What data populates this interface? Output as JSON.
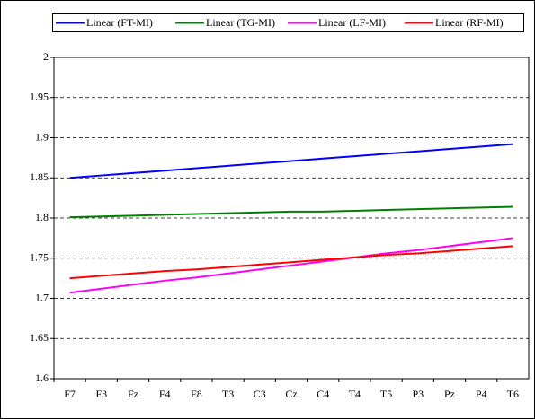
{
  "chart_data": {
    "type": "line",
    "categories": [
      "F7",
      "F3",
      "Fz",
      "F4",
      "F8",
      "T3",
      "C3",
      "Cz",
      "C4",
      "T4",
      "T5",
      "P3",
      "Pz",
      "P4",
      "T6"
    ],
    "series": [
      {
        "name": "Linear (FT-MI)",
        "color": "#0000ff",
        "values": [
          1.85,
          1.853,
          1.856,
          1.859,
          1.862,
          1.865,
          1.868,
          1.871,
          1.874,
          1.877,
          1.88,
          1.883,
          1.886,
          1.889,
          1.892
        ]
      },
      {
        "name": "Linear (TG-MI)",
        "color": "#008000",
        "values": [
          1.801,
          1.802,
          1.803,
          1.804,
          1.805,
          1.806,
          1.807,
          1.808,
          1.808,
          1.809,
          1.81,
          1.811,
          1.812,
          1.813,
          1.814
        ]
      },
      {
        "name": "Linear (LF-MI)",
        "color": "#ff00ff",
        "values": [
          1.707,
          1.712,
          1.717,
          1.722,
          1.726,
          1.731,
          1.736,
          1.741,
          1.746,
          1.751,
          1.756,
          1.76,
          1.765,
          1.77,
          1.775
        ]
      },
      {
        "name": "Linear (RF-MI)",
        "color": "#ff0000",
        "values": [
          1.725,
          1.728,
          1.731,
          1.734,
          1.736,
          1.739,
          1.742,
          1.745,
          1.748,
          1.751,
          1.754,
          1.756,
          1.759,
          1.762,
          1.765
        ]
      }
    ],
    "ylim": [
      1.6,
      2
    ],
    "yticks": [
      1.6,
      1.65,
      1.7,
      1.75,
      1.8,
      1.85,
      1.9,
      1.95,
      2
    ],
    "grid": true,
    "legend": "top"
  }
}
